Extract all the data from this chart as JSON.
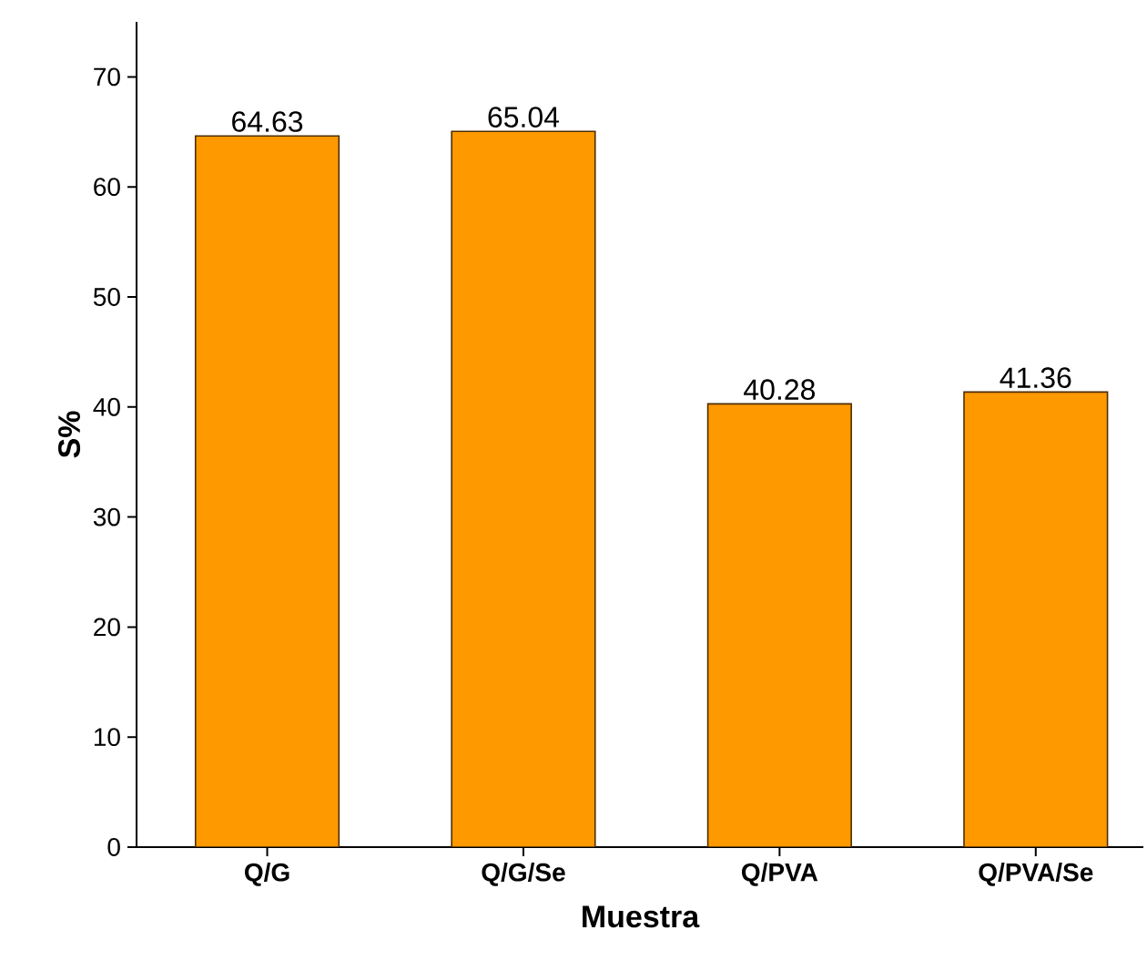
{
  "chart_data": {
    "type": "bar",
    "xlabel": "Muestra",
    "ylabel": "S%",
    "categories": [
      "Q/G",
      "Q/G/Se",
      "Q/PVA",
      "Q/PVA/Se"
    ],
    "values": [
      64.63,
      65.04,
      40.28,
      41.36
    ],
    "color": "#ff9900",
    "ylim": [
      0,
      75
    ],
    "yticks": [
      0,
      10,
      20,
      30,
      40,
      50,
      60,
      70
    ],
    "data_labels": true
  }
}
